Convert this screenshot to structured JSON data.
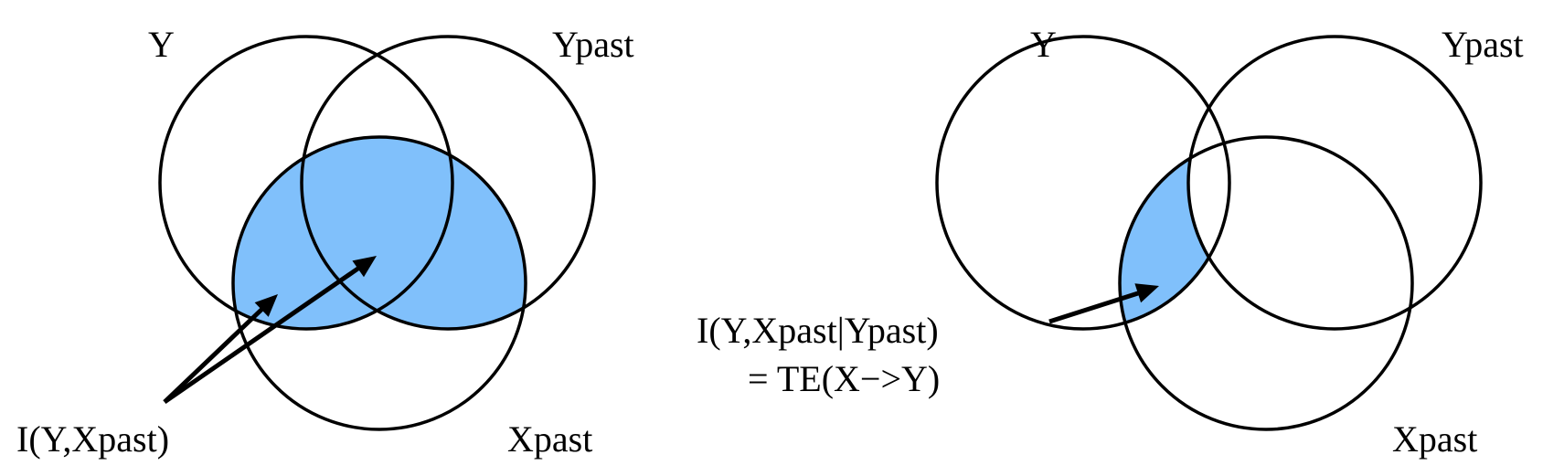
{
  "colors": {
    "highlight": "#80c0fb",
    "stroke": "#000000",
    "background": "#ffffff"
  },
  "left_diagram": {
    "label_y": "Y",
    "label_ypast": "Ypast",
    "label_xpast": "Xpast",
    "annotation": "I(Y,Xpast)"
  },
  "right_diagram": {
    "label_y": "Y",
    "label_ypast": "Ypast",
    "label_xpast": "Xpast",
    "annotation_line1": "I(Y,Xpast|Ypast)",
    "annotation_line2": "= TE(X−>Y)"
  }
}
